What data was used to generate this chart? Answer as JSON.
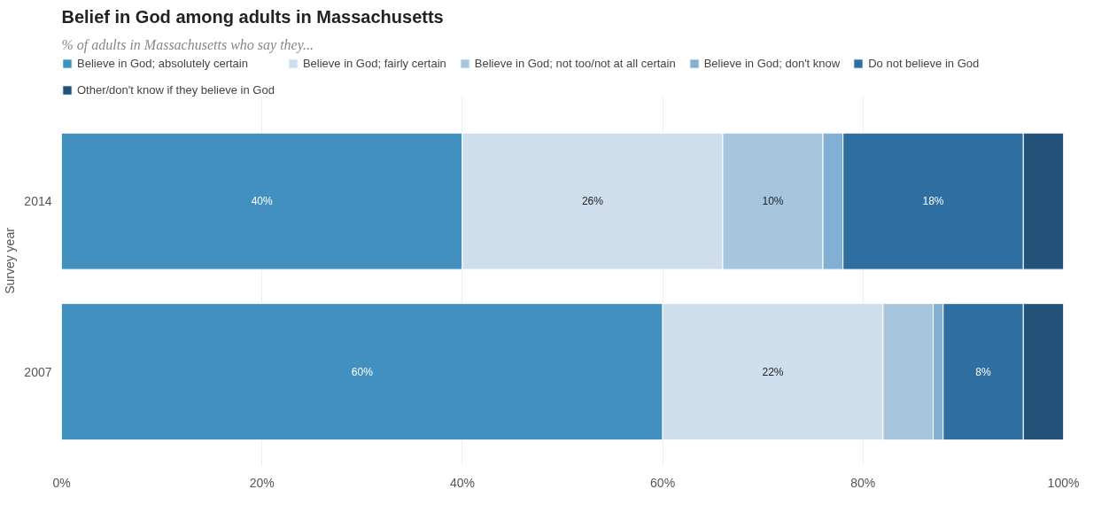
{
  "chart_data": {
    "type": "bar",
    "orientation": "horizontal",
    "stacked": true,
    "title": "Belief in God among adults in Massachusetts",
    "subtitle": "% of adults in Massachusetts who say they...",
    "ylabel": "Survey year",
    "categories": [
      "2014",
      "2007"
    ],
    "series": [
      {
        "name": "Believe in God; absolutely certain",
        "color": "#4190c0",
        "values": [
          40,
          60
        ],
        "value_labels": [
          "40%",
          "60%"
        ]
      },
      {
        "name": "Believe in God; fairly certain",
        "color": "#cedeec",
        "values": [
          26,
          22
        ],
        "value_labels": [
          "26%",
          "22%"
        ]
      },
      {
        "name": "Believe in God; not too/not at all certain",
        "color": "#a7c6de",
        "values": [
          10,
          5
        ],
        "value_labels": [
          "10%",
          null
        ]
      },
      {
        "name": "Believe in God; don't know",
        "color": "#82b0d4",
        "values": [
          2,
          1
        ],
        "value_labels": [
          null,
          null
        ]
      },
      {
        "name": "Do not believe in God",
        "color": "#2e6ea0",
        "values": [
          18,
          8
        ],
        "value_labels": [
          "18%",
          "8%"
        ]
      },
      {
        "name": "Other/don't know if they believe in God",
        "color": "#22527a",
        "values": [
          4,
          4
        ],
        "value_labels": [
          null,
          null
        ]
      }
    ],
    "xlim": [
      0,
      100
    ],
    "xticks": [
      {
        "value": 0,
        "label": "0%"
      },
      {
        "value": 20,
        "label": "20%"
      },
      {
        "value": 40,
        "label": "40%"
      },
      {
        "value": 60,
        "label": "60%"
      },
      {
        "value": 80,
        "label": "80%"
      },
      {
        "value": 100,
        "label": "100%"
      }
    ],
    "grid": "x",
    "legend": "top"
  }
}
